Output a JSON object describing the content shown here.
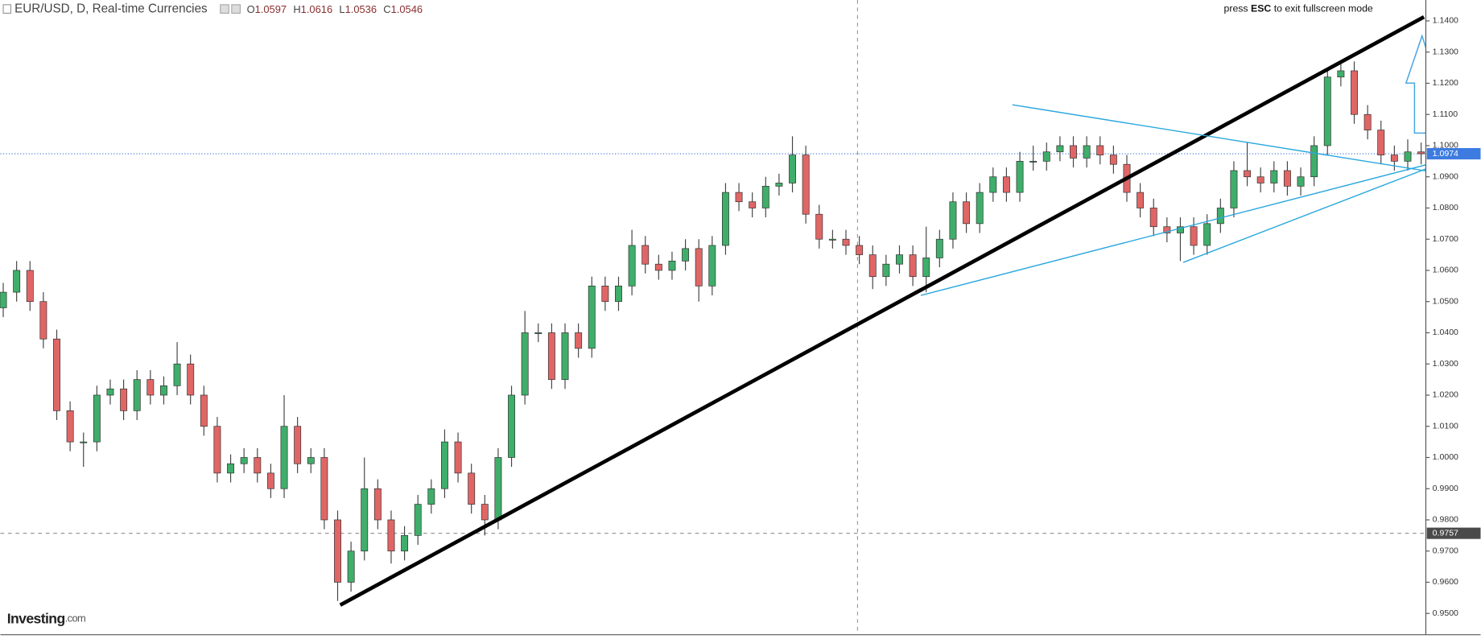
{
  "header": {
    "symbol": "EUR/USD, D, Real-time Currencies",
    "ohlc": [
      {
        "label": "O",
        "value": 1.0597
      },
      {
        "label": "H",
        "value": 1.0616
      },
      {
        "label": "L",
        "value": 1.0536
      },
      {
        "label": "C",
        "value": 1.0546
      }
    ]
  },
  "notice": {
    "prefix": "press ",
    "key": "ESC",
    "suffix": " to exit fullscreen mode"
  },
  "logo": {
    "name": "Investing",
    "suffix": ".com"
  },
  "chart_data": {
    "type": "candlestick",
    "up_color": "#3fae6a",
    "down_color": "#e06666",
    "open": [
      1.048,
      1.053,
      1.06,
      1.05,
      1.038,
      1.015,
      1.005,
      1.005,
      1.02,
      1.022,
      1.015,
      1.025,
      1.02,
      1.023,
      1.03,
      1.02,
      1.01,
      0.995,
      0.998,
      1.0,
      0.995,
      0.99,
      1.01,
      0.998,
      1.0,
      0.98,
      0.96,
      0.97,
      0.99,
      0.98,
      0.97,
      0.975,
      0.985,
      0.99,
      1.005,
      0.995,
      0.985,
      0.98,
      1.0,
      1.02,
      1.04,
      1.04,
      1.025,
      1.04,
      1.035,
      1.055,
      1.05,
      1.055,
      1.068,
      1.062,
      1.06,
      1.063,
      1.067,
      1.055,
      1.068,
      1.085,
      1.082,
      1.08,
      1.087,
      1.088,
      1.097,
      1.078,
      1.07,
      1.07,
      1.068,
      1.065,
      1.058,
      1.062,
      1.065,
      1.058,
      1.064,
      1.07,
      1.082,
      1.075,
      1.085,
      1.09,
      1.085,
      1.095,
      1.095,
      1.098,
      1.1,
      1.096,
      1.1,
      1.097,
      1.094,
      1.085,
      1.08,
      1.074,
      1.072,
      1.074,
      1.068,
      1.075,
      1.08,
      1.092,
      1.09,
      1.088,
      1.092,
      1.087,
      1.09,
      1.1,
      1.122,
      1.124,
      1.11,
      1.105,
      1.097,
      1.095,
      1.098
    ],
    "high": [
      1.056,
      1.063,
      1.063,
      1.053,
      1.041,
      1.018,
      1.008,
      1.023,
      1.025,
      1.025,
      1.028,
      1.028,
      1.026,
      1.037,
      1.033,
      1.023,
      1.013,
      1.001,
      1.003,
      1.003,
      0.998,
      1.02,
      1.013,
      1.003,
      1.003,
      0.983,
      0.973,
      1.0,
      0.993,
      0.983,
      0.978,
      0.988,
      0.993,
      1.009,
      1.008,
      0.998,
      0.988,
      1.003,
      1.023,
      1.047,
      1.043,
      1.043,
      1.043,
      1.043,
      1.058,
      1.058,
      1.058,
      1.073,
      1.071,
      1.065,
      1.066,
      1.07,
      1.07,
      1.071,
      1.088,
      1.088,
      1.085,
      1.09,
      1.091,
      1.103,
      1.1,
      1.081,
      1.073,
      1.073,
      1.071,
      1.068,
      1.065,
      1.068,
      1.068,
      1.074,
      1.073,
      1.085,
      1.085,
      1.088,
      1.093,
      1.093,
      1.098,
      1.1,
      1.101,
      1.103,
      1.103,
      1.103,
      1.103,
      1.1,
      1.097,
      1.088,
      1.083,
      1.077,
      1.077,
      1.077,
      1.078,
      1.083,
      1.095,
      1.101,
      1.093,
      1.095,
      1.095,
      1.093,
      1.103,
      1.125,
      1.127,
      1.127,
      1.113,
      1.108,
      1.1,
      1.102,
      1.101
    ],
    "low": [
      1.045,
      1.05,
      1.047,
      1.035,
      1.012,
      1.002,
      0.997,
      1.002,
      1.017,
      1.012,
      1.012,
      1.017,
      1.017,
      1.02,
      1.017,
      1.007,
      0.992,
      0.992,
      0.995,
      0.992,
      0.987,
      0.987,
      0.995,
      0.995,
      0.977,
      0.954,
      0.957,
      0.967,
      0.977,
      0.966,
      0.967,
      0.972,
      0.982,
      0.987,
      0.992,
      0.982,
      0.975,
      0.977,
      0.997,
      1.017,
      1.037,
      1.022,
      1.022,
      1.032,
      1.032,
      1.047,
      1.047,
      1.052,
      1.059,
      1.057,
      1.057,
      1.06,
      1.05,
      1.052,
      1.065,
      1.079,
      1.077,
      1.077,
      1.084,
      1.085,
      1.075,
      1.067,
      1.067,
      1.065,
      1.062,
      1.054,
      1.055,
      1.059,
      1.055,
      1.053,
      1.061,
      1.067,
      1.072,
      1.072,
      1.082,
      1.082,
      1.082,
      1.092,
      1.092,
      1.095,
      1.093,
      1.093,
      1.094,
      1.091,
      1.082,
      1.077,
      1.071,
      1.069,
      1.063,
      1.065,
      1.065,
      1.072,
      1.077,
      1.087,
      1.085,
      1.085,
      1.084,
      1.084,
      1.087,
      1.097,
      1.119,
      1.107,
      1.102,
      1.094,
      1.092,
      1.092,
      1.094
    ],
    "close": [
      1.053,
      1.06,
      1.05,
      1.038,
      1.015,
      1.005,
      1.005,
      1.02,
      1.022,
      1.015,
      1.025,
      1.02,
      1.023,
      1.03,
      1.02,
      1.01,
      0.995,
      0.998,
      1.0,
      0.995,
      0.99,
      1.01,
      0.998,
      1.0,
      0.98,
      0.96,
      0.97,
      0.99,
      0.98,
      0.97,
      0.975,
      0.985,
      0.99,
      1.005,
      0.995,
      0.985,
      0.98,
      1.0,
      1.02,
      1.04,
      1.04,
      1.025,
      1.04,
      1.035,
      1.055,
      1.05,
      1.055,
      1.068,
      1.062,
      1.06,
      1.063,
      1.067,
      1.055,
      1.068,
      1.085,
      1.082,
      1.08,
      1.087,
      1.088,
      1.097,
      1.078,
      1.07,
      1.07,
      1.068,
      1.065,
      1.058,
      1.062,
      1.065,
      1.058,
      1.064,
      1.07,
      1.082,
      1.075,
      1.085,
      1.09,
      1.085,
      1.095,
      1.095,
      1.098,
      1.1,
      1.096,
      1.1,
      1.097,
      1.094,
      1.085,
      1.08,
      1.074,
      1.072,
      1.074,
      1.068,
      1.075,
      1.08,
      1.092,
      1.09,
      1.088,
      1.092,
      1.087,
      1.09,
      1.1,
      1.122,
      1.124,
      1.11,
      1.105,
      1.097,
      1.095,
      1.098,
      1.0974
    ],
    "ylim": [
      0.9418,
      1.1467
    ],
    "yticks": [
      {
        "value": 0.95,
        "label": "0.9500"
      },
      {
        "value": 0.96,
        "label": "0.9600"
      },
      {
        "value": 0.97,
        "label": "0.9700"
      },
      {
        "value": 0.98,
        "label": "0.9800"
      },
      {
        "value": 0.99,
        "label": "0.9900"
      },
      {
        "value": 1.0,
        "label": "1.0000"
      },
      {
        "value": 1.01,
        "label": "1.0100"
      },
      {
        "value": 1.02,
        "label": "1.0200"
      },
      {
        "value": 1.03,
        "label": "1.0300"
      },
      {
        "value": 1.04,
        "label": "1.0400"
      },
      {
        "value": 1.05,
        "label": "1.0500"
      },
      {
        "value": 1.06,
        "label": "1.0600"
      },
      {
        "value": 1.07,
        "label": "1.0700"
      },
      {
        "value": 1.08,
        "label": "1.0800"
      },
      {
        "value": 1.09,
        "label": "1.0900"
      },
      {
        "value": 1.1,
        "label": "1.1000"
      },
      {
        "value": 1.11,
        "label": "1.1100"
      },
      {
        "value": 1.12,
        "label": "1.1200"
      },
      {
        "value": 1.13,
        "label": "1.1300"
      },
      {
        "value": 1.14,
        "label": "1.1400"
      }
    ],
    "current_price": 1.0974,
    "crosshair_price": 0.9757
  }
}
